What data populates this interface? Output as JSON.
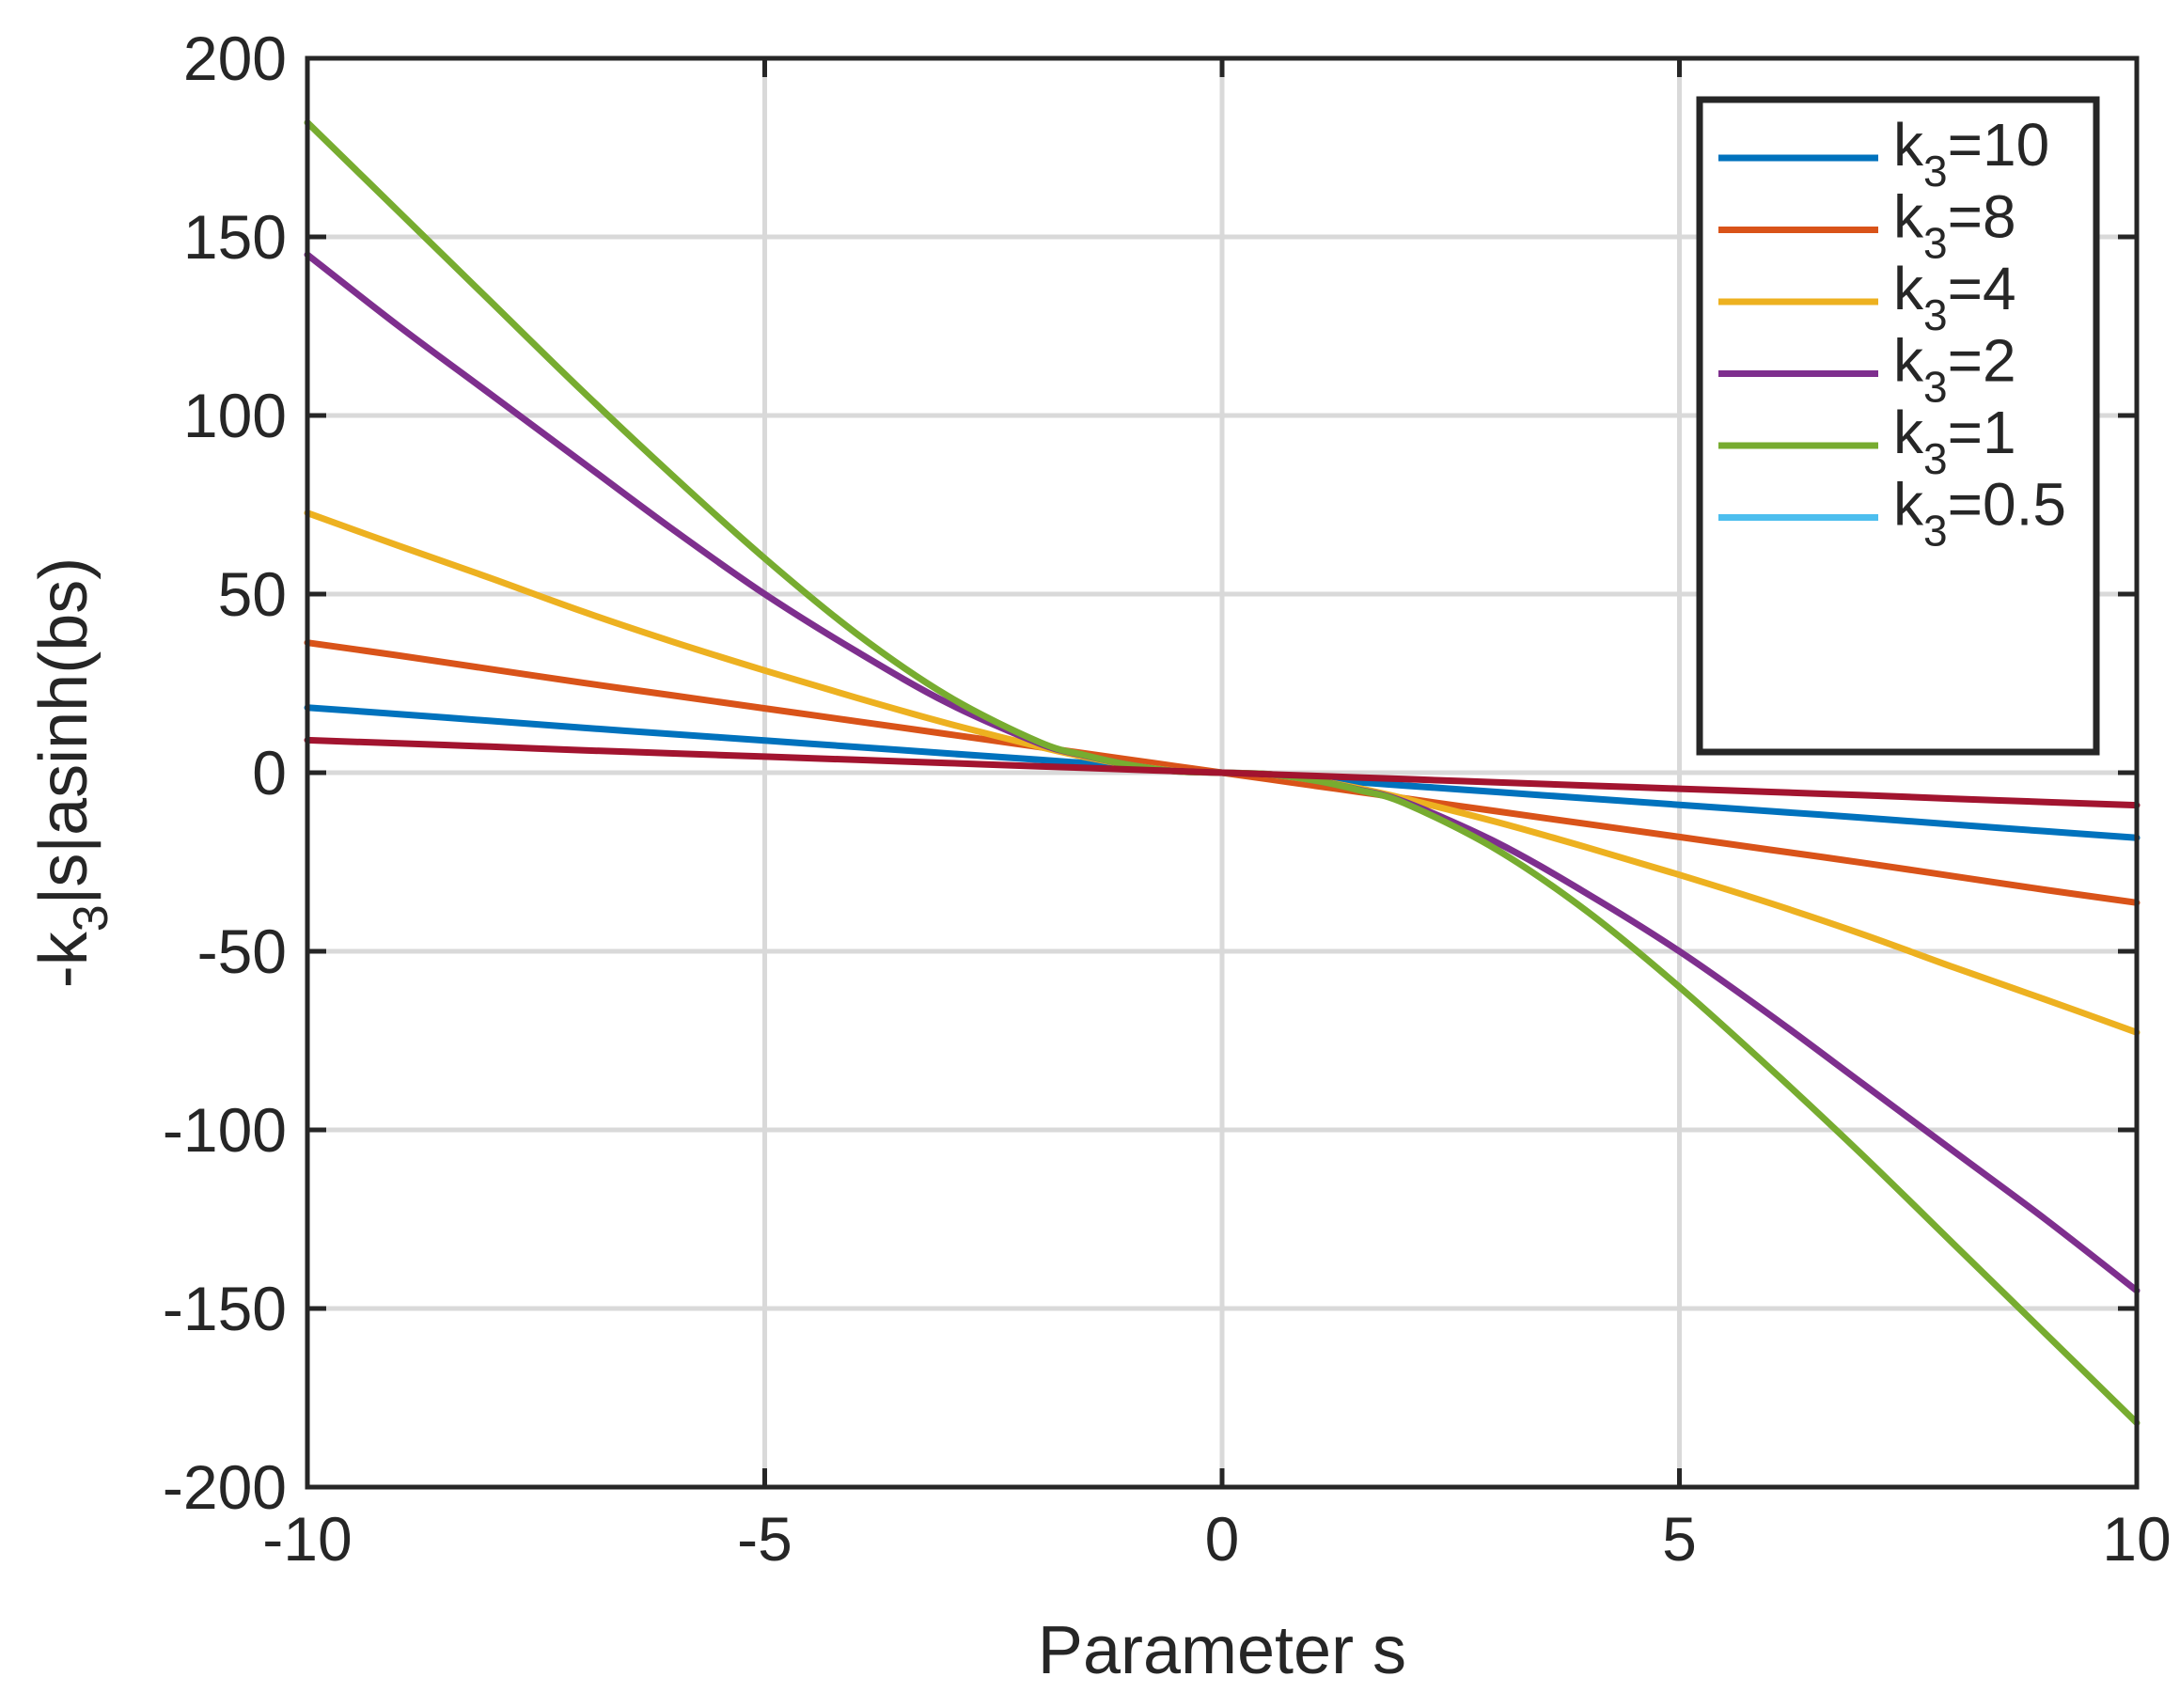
{
  "chart_data": {
    "type": "line",
    "title": "",
    "xlabel": "Parameter s",
    "ylabel": {
      "prefix": "-k",
      "subscript": "3",
      "suffix": "|s|asinh(bs)"
    },
    "xlim": [
      -10,
      10
    ],
    "ylim": [
      -200,
      200
    ],
    "xticks": [
      -10,
      -5,
      0,
      5,
      10
    ],
    "xtick_labels": [
      "-10",
      "-5",
      "0",
      "5",
      "10"
    ],
    "yticks": [
      200,
      150,
      100,
      50,
      0,
      -50,
      -100,
      -150,
      -200
    ],
    "ytick_labels": [
      "200",
      "150",
      "100",
      "50",
      "0",
      "-50",
      "-100",
      "-150",
      "-200"
    ],
    "grid": true,
    "legend_position": "top-right",
    "x_samples": [
      -10,
      -9,
      -8,
      -7,
      -6,
      -5,
      -4,
      -3,
      -2,
      -1.5,
      -1,
      -0.5,
      0,
      0.5,
      1,
      1.5,
      2,
      3,
      4,
      5,
      6,
      7,
      8,
      9,
      10
    ],
    "series": [
      {
        "name": "k3=10",
        "legend_prefix": "k",
        "legend_sub": "3",
        "legend_suffix": "=10",
        "color": "#0072BD",
        "in_legend": true,
        "values": [
          18.2,
          16.4,
          14.5,
          12.6,
          10.8,
          9.0,
          7.2,
          5.4,
          3.6,
          2.7,
          1.8,
          0.9,
          0,
          -0.9,
          -1.8,
          -2.7,
          -3.6,
          -5.4,
          -7.2,
          -9.0,
          -10.8,
          -12.6,
          -14.5,
          -16.4,
          -18.2
        ]
      },
      {
        "name": "k3=8",
        "legend_prefix": "k",
        "legend_sub": "3",
        "legend_suffix": "=8",
        "color": "#D95319",
        "in_legend": true,
        "values": [
          36.4,
          32.8,
          29.0,
          25.2,
          21.6,
          18.0,
          14.4,
          10.8,
          7.2,
          5.4,
          3.6,
          1.8,
          0,
          -1.8,
          -3.6,
          -5.4,
          -7.2,
          -10.8,
          -14.4,
          -18.0,
          -21.6,
          -25.2,
          -29.0,
          -32.8,
          -36.4
        ]
      },
      {
        "name": "k3=4",
        "legend_prefix": "k",
        "legend_sub": "3",
        "legend_suffix": "=4",
        "color": "#EDB120",
        "in_legend": true,
        "values": [
          72.7,
          63.5,
          54.5,
          45.2,
          36.6,
          28.6,
          21.0,
          13.8,
          7.3,
          4.4,
          2.1,
          0.5,
          0,
          -0.5,
          -2.1,
          -4.4,
          -7.3,
          -13.8,
          -21.0,
          -28.6,
          -36.6,
          -45.2,
          -54.5,
          -63.5,
          -72.7
        ]
      },
      {
        "name": "k3=2",
        "legend_prefix": "k",
        "legend_sub": "3",
        "legend_suffix": "=2",
        "color": "#7E2F8E",
        "in_legend": true,
        "values": [
          145,
          125,
          106,
          87,
          68,
          50,
          34,
          19.5,
          8.2,
          4.8,
          2.1,
          0.4,
          0,
          -0.4,
          -2.1,
          -4.8,
          -8.2,
          -19.5,
          -34,
          -50,
          -68,
          -87,
          -106,
          -125,
          -145
        ]
      },
      {
        "name": "k3=1",
        "legend_prefix": "k",
        "legend_sub": "3",
        "legend_suffix": "=1",
        "color": "#77AC30",
        "in_legend": true,
        "values": [
          182,
          157,
          132,
          107,
          83,
          60,
          39,
          21.5,
          8.6,
          4.9,
          2.1,
          0.4,
          0,
          -0.4,
          -2.1,
          -4.9,
          -8.6,
          -21.5,
          -39,
          -60,
          -83,
          -107,
          -132,
          -157,
          -182
        ]
      },
      {
        "name": "k3=0.5",
        "legend_prefix": "k",
        "legend_sub": "3",
        "legend_suffix": "=0.5",
        "color": "#4DBEEE",
        "in_legend": true,
        "values": []
      },
      {
        "name": "unlabeled",
        "color": "#A2142F",
        "in_legend": false,
        "values": [
          9.1,
          8.2,
          7.3,
          6.3,
          5.4,
          4.5,
          3.6,
          2.7,
          1.8,
          1.35,
          0.9,
          0.45,
          0,
          -0.45,
          -0.9,
          -1.35,
          -1.8,
          -2.7,
          -3.6,
          -4.5,
          -5.4,
          -6.3,
          -7.3,
          -8.2,
          -9.1
        ]
      }
    ]
  }
}
